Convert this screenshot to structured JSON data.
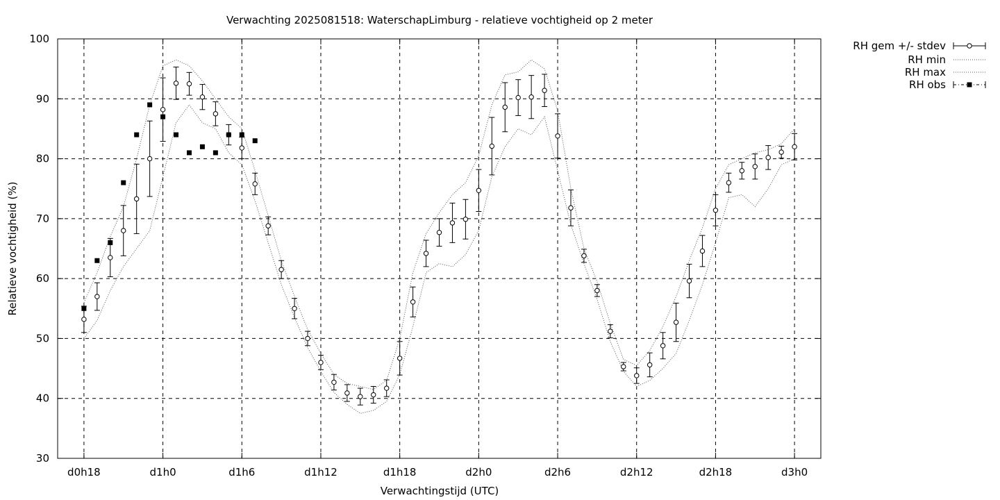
{
  "chart_data": {
    "type": "line",
    "title": "Verwachting 2025081518: WaterschapLimburg - relatieve vochtigheid op 2 meter",
    "xlabel": "Verwachtingstijd (UTC)",
    "ylabel": "Relatieve vochtigheid (%)",
    "x_unit": "hours since d0h0",
    "xlim": [
      16,
      74
    ],
    "ylim": [
      30,
      100
    ],
    "grid": true,
    "legend_position": "outside-right-top",
    "x_ticks": [
      {
        "x": 18,
        "label": "d0h18"
      },
      {
        "x": 24,
        "label": "d1h0"
      },
      {
        "x": 30,
        "label": "d1h6"
      },
      {
        "x": 36,
        "label": "d1h12"
      },
      {
        "x": 42,
        "label": "d1h18"
      },
      {
        "x": 48,
        "label": "d2h0"
      },
      {
        "x": 54,
        "label": "d2h6"
      },
      {
        "x": 60,
        "label": "d2h12"
      },
      {
        "x": 66,
        "label": "d2h18"
      },
      {
        "x": 72,
        "label": "d3h0"
      }
    ],
    "y_ticks": [
      30,
      40,
      50,
      60,
      70,
      80,
      90,
      100
    ],
    "series": [
      {
        "name": "RH gem +/- stdev",
        "style": "open-circle-errorbar",
        "x": [
          18,
          19,
          20,
          21,
          22,
          23,
          24,
          25,
          26,
          27,
          28,
          29,
          30,
          31,
          32,
          33,
          34,
          35,
          36,
          37,
          38,
          39,
          40,
          41,
          42,
          43,
          44,
          45,
          46,
          47,
          48,
          49,
          50,
          51,
          52,
          53,
          54,
          55,
          56,
          57,
          58,
          59,
          60,
          61,
          62,
          63,
          64,
          65,
          66,
          67,
          68,
          69,
          70,
          71,
          72
        ],
        "values": [
          53.2,
          57.0,
          63.5,
          68.0,
          73.3,
          80.0,
          88.2,
          92.6,
          92.5,
          90.3,
          87.5,
          84.0,
          81.8,
          75.8,
          68.8,
          61.5,
          55.0,
          50.0,
          46.0,
          42.7,
          40.9,
          40.3,
          40.6,
          41.7,
          46.7,
          56.1,
          64.2,
          67.7,
          69.3,
          69.9,
          74.7,
          82.1,
          88.6,
          90.2,
          90.3,
          91.4,
          83.8,
          71.8,
          63.8,
          58.0,
          51.2,
          45.3,
          43.8,
          45.6,
          48.8,
          52.7,
          59.6,
          64.6,
          71.4,
          76.0,
          78.0,
          78.7,
          80.2,
          81.1,
          82.0
        ],
        "stdev": [
          2.2,
          2.3,
          3.2,
          4.2,
          5.8,
          6.3,
          5.3,
          2.7,
          1.9,
          2.1,
          2.0,
          1.7,
          1.8,
          1.8,
          1.5,
          1.5,
          1.7,
          1.2,
          1.2,
          1.3,
          1.4,
          1.4,
          1.4,
          1.4,
          2.8,
          2.5,
          2.2,
          2.3,
          3.3,
          3.3,
          3.5,
          4.8,
          4.1,
          3.0,
          3.6,
          2.7,
          3.7,
          3.0,
          1.1,
          1.0,
          1.1,
          0.7,
          1.3,
          2.0,
          2.2,
          3.2,
          2.8,
          2.6,
          2.6,
          1.6,
          1.4,
          2.1,
          2.0,
          1.0,
          2.2
        ]
      },
      {
        "name": "RH min",
        "style": "dotted",
        "x": [
          18,
          19,
          20,
          21,
          22,
          23,
          24,
          25,
          26,
          27,
          28,
          29,
          30,
          31,
          32,
          33,
          34,
          35,
          36,
          37,
          38,
          39,
          40,
          41,
          42,
          43,
          44,
          45,
          46,
          47,
          48,
          49,
          50,
          51,
          52,
          53,
          54,
          55,
          56,
          57,
          58,
          59,
          60,
          61,
          62,
          63,
          64,
          65,
          66,
          67,
          68,
          69,
          70,
          71,
          72
        ],
        "values": [
          50.0,
          53.0,
          58.0,
          62.0,
          65.0,
          68.0,
          77.0,
          86.0,
          89.0,
          86.0,
          85.0,
          81.0,
          79.0,
          73.0,
          66.0,
          59.0,
          53.5,
          48.5,
          44.5,
          41.0,
          39.0,
          37.5,
          38.0,
          39.5,
          44.0,
          52.0,
          61.0,
          62.5,
          62.0,
          64.0,
          68.0,
          77.0,
          82.0,
          85.0,
          84.0,
          87.0,
          78.0,
          69.0,
          62.5,
          56.5,
          49.5,
          44.5,
          42.0,
          43.0,
          45.0,
          47.5,
          53.0,
          59.0,
          66.0,
          73.5,
          74.0,
          72.0,
          75.0,
          79.0,
          80.0
        ]
      },
      {
        "name": "RH max",
        "style": "dotted",
        "x": [
          18,
          19,
          20,
          21,
          22,
          23,
          24,
          25,
          26,
          27,
          28,
          29,
          30,
          31,
          32,
          33,
          34,
          35,
          36,
          37,
          38,
          39,
          40,
          41,
          42,
          43,
          44,
          45,
          46,
          47,
          48,
          49,
          50,
          51,
          52,
          53,
          54,
          55,
          56,
          57,
          58,
          59,
          60,
          61,
          62,
          63,
          64,
          65,
          66,
          67,
          68,
          69,
          70,
          71,
          72
        ],
        "values": [
          56.0,
          61.0,
          67.0,
          72.0,
          80.0,
          89.0,
          95.5,
          96.5,
          95.5,
          93.0,
          90.0,
          87.0,
          85.0,
          78.0,
          70.5,
          63.0,
          57.0,
          51.5,
          47.5,
          44.0,
          42.5,
          42.0,
          41.5,
          43.0,
          50.0,
          61.0,
          67.5,
          71.0,
          74.0,
          76.0,
          80.5,
          89.0,
          94.0,
          94.5,
          96.5,
          95.0,
          88.0,
          75.0,
          65.0,
          59.5,
          52.5,
          46.5,
          45.5,
          48.0,
          52.0,
          57.0,
          63.0,
          68.5,
          75.0,
          79.0,
          80.0,
          81.0,
          81.5,
          82.5,
          85.0
        ]
      },
      {
        "name": "RH obs",
        "style": "filled-square",
        "x": [
          18,
          19,
          20,
          21,
          22,
          23,
          24,
          25,
          26,
          27,
          28,
          29,
          30,
          31
        ],
        "values": [
          55,
          63,
          66,
          76,
          84,
          89,
          87,
          84,
          81,
          82,
          81,
          84,
          84,
          83
        ]
      }
    ]
  }
}
